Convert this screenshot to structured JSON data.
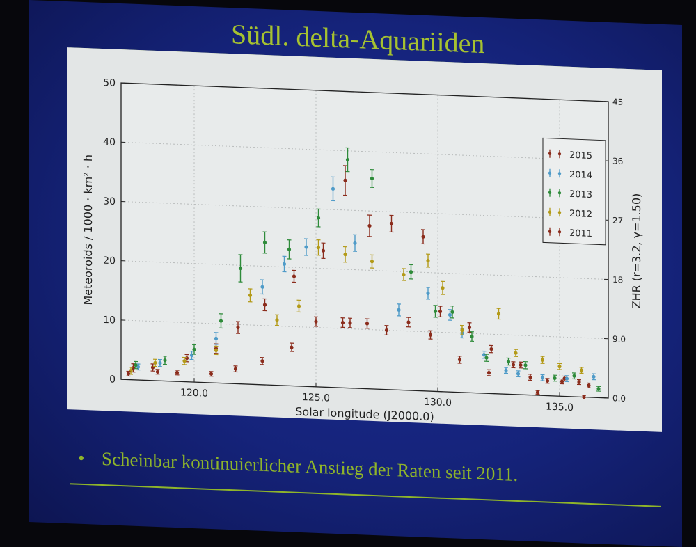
{
  "slide": {
    "title": "Südl. delta-Aquariiden",
    "bullet_symbol": "•",
    "bullet_text": "Scheinbar kontinuierlicher Anstieg der Raten seit 2011.",
    "colors": {
      "background": "#15237a",
      "accent": "#a6c230",
      "plot_background": "#e3e6e6"
    }
  },
  "chart_data": {
    "type": "scatter",
    "title": "",
    "xlabel": "Solar longitude (J2000.0)",
    "ylabel": "Meteoroids / 1000 · km² · h",
    "y2label": "ZHR (r=3.2, γ=1.50)",
    "xlim": [
      117.0,
      137.0
    ],
    "ylim": [
      0,
      50
    ],
    "x_ticks": [
      "120.0",
      "125.0",
      "130.0",
      "135.0"
    ],
    "x_tick_values": [
      120.0,
      125.0,
      130.0,
      135.0
    ],
    "y_ticks": [
      "0",
      "10",
      "20",
      "30",
      "40",
      "50"
    ],
    "y_tick_values": [
      0,
      10,
      20,
      30,
      40,
      50
    ],
    "y2_ticks": [
      "0.0",
      "9.0",
      "18",
      "27",
      "36",
      "45"
    ],
    "y2_tick_values": [
      0,
      9,
      18,
      27,
      36,
      45
    ],
    "grid": true,
    "legend_position": "top-right",
    "series": [
      {
        "name": "2015",
        "color": "#8b2c1c",
        "x": [
          117.5,
          118.3,
          119.7,
          120.9,
          121.8,
          122.9,
          124.1,
          125.3,
          126.2,
          126.4,
          127.2,
          128.1,
          129.4,
          130.1,
          131.3,
          132.2,
          133.1,
          133.8,
          134.5,
          135.2,
          135.8,
          136.2
        ],
        "y": [
          2.0,
          2.2,
          4.0,
          5.8,
          9.5,
          13.5,
          18.5,
          23.0,
          35.0,
          11.0,
          27.5,
          28.0,
          26.0,
          13.5,
          11.0,
          7.5,
          5.0,
          3.0,
          2.5,
          3.0,
          2.5,
          2.0
        ],
        "err": [
          0.7,
          0.6,
          0.6,
          0.8,
          1.0,
          1.0,
          1.0,
          1.3,
          2.5,
          0.8,
          1.8,
          1.4,
          1.2,
          0.9,
          0.8,
          0.6,
          0.5,
          0.5,
          0.4,
          0.4,
          0.4,
          0.4
        ]
      },
      {
        "name": "2014",
        "color": "#4f9bc8",
        "x": [
          117.7,
          118.6,
          119.9,
          120.9,
          122.8,
          123.7,
          124.6,
          125.7,
          126.6,
          128.4,
          129.6,
          130.5,
          131.0,
          131.9,
          132.8,
          133.3,
          134.3,
          135.3,
          136.4
        ],
        "y": [
          2.2,
          3.0,
          4.5,
          7.5,
          16.5,
          20.5,
          23.5,
          33.5,
          24.5,
          13.5,
          16.5,
          13.0,
          10.0,
          6.5,
          4.0,
          3.5,
          3.0,
          3.0,
          3.5
        ],
        "err": [
          0.5,
          0.6,
          0.7,
          1.0,
          1.2,
          1.3,
          1.4,
          2.0,
          1.4,
          1.0,
          1.0,
          0.9,
          0.8,
          0.6,
          0.5,
          0.5,
          0.5,
          0.5,
          0.5
        ]
      },
      {
        "name": "2013",
        "color": "#2e8b3a",
        "x": [
          117.6,
          118.8,
          120.0,
          121.1,
          121.9,
          122.9,
          123.9,
          125.1,
          126.3,
          127.3,
          128.9,
          129.9,
          130.6,
          131.4,
          132.0,
          132.9,
          133.6,
          134.8,
          135.6,
          136.6
        ],
        "y": [
          2.5,
          3.5,
          5.5,
          10.5,
          19.5,
          24.0,
          23.0,
          28.5,
          38.5,
          35.5,
          20.0,
          13.5,
          13.5,
          9.5,
          6.0,
          5.5,
          5.0,
          3.0,
          3.5,
          1.5
        ],
        "err": [
          0.6,
          0.7,
          0.8,
          1.2,
          2.3,
          1.8,
          1.6,
          1.5,
          2.0,
          1.5,
          1.2,
          1.0,
          1.0,
          0.8,
          0.6,
          0.6,
          0.6,
          0.5,
          0.5,
          0.4
        ]
      },
      {
        "name": "2012",
        "color": "#b39a18",
        "x": [
          117.4,
          118.4,
          119.6,
          120.9,
          122.3,
          123.4,
          124.3,
          125.1,
          126.2,
          127.3,
          128.6,
          129.6,
          130.2,
          131.0,
          132.5,
          133.2,
          134.3,
          135.0,
          135.9
        ],
        "y": [
          1.5,
          3.0,
          3.5,
          5.5,
          15.0,
          11.0,
          13.5,
          23.5,
          22.5,
          21.5,
          19.5,
          22.0,
          17.5,
          10.5,
          13.5,
          7.0,
          6.0,
          5.0,
          4.5
        ],
        "err": [
          0.6,
          0.6,
          0.6,
          0.7,
          1.1,
          0.9,
          1.0,
          1.3,
          1.3,
          1.1,
          1.0,
          1.1,
          1.1,
          0.8,
          0.9,
          0.6,
          0.6,
          0.5,
          0.5
        ]
      },
      {
        "name": "2011",
        "color": "#8b2c1c",
        "x": [
          117.3,
          118.5,
          119.3,
          120.7,
          121.7,
          122.8,
          124.0,
          125.0,
          126.1,
          127.1,
          127.9,
          128.8,
          129.7,
          130.9,
          132.1,
          133.4,
          134.1,
          135.1,
          136.0
        ],
        "y": [
          1.0,
          1.5,
          1.5,
          1.5,
          2.5,
          4.0,
          6.5,
          11.0,
          11.0,
          11.0,
          10.0,
          11.5,
          9.5,
          5.5,
          3.5,
          5.0,
          0.5,
          2.5,
          0.0
        ],
        "err": [
          0.4,
          0.4,
          0.4,
          0.4,
          0.5,
          0.6,
          0.7,
          0.8,
          0.8,
          0.8,
          0.8,
          0.8,
          0.7,
          0.6,
          0.5,
          0.5,
          0.3,
          0.4,
          0.3
        ]
      }
    ]
  }
}
